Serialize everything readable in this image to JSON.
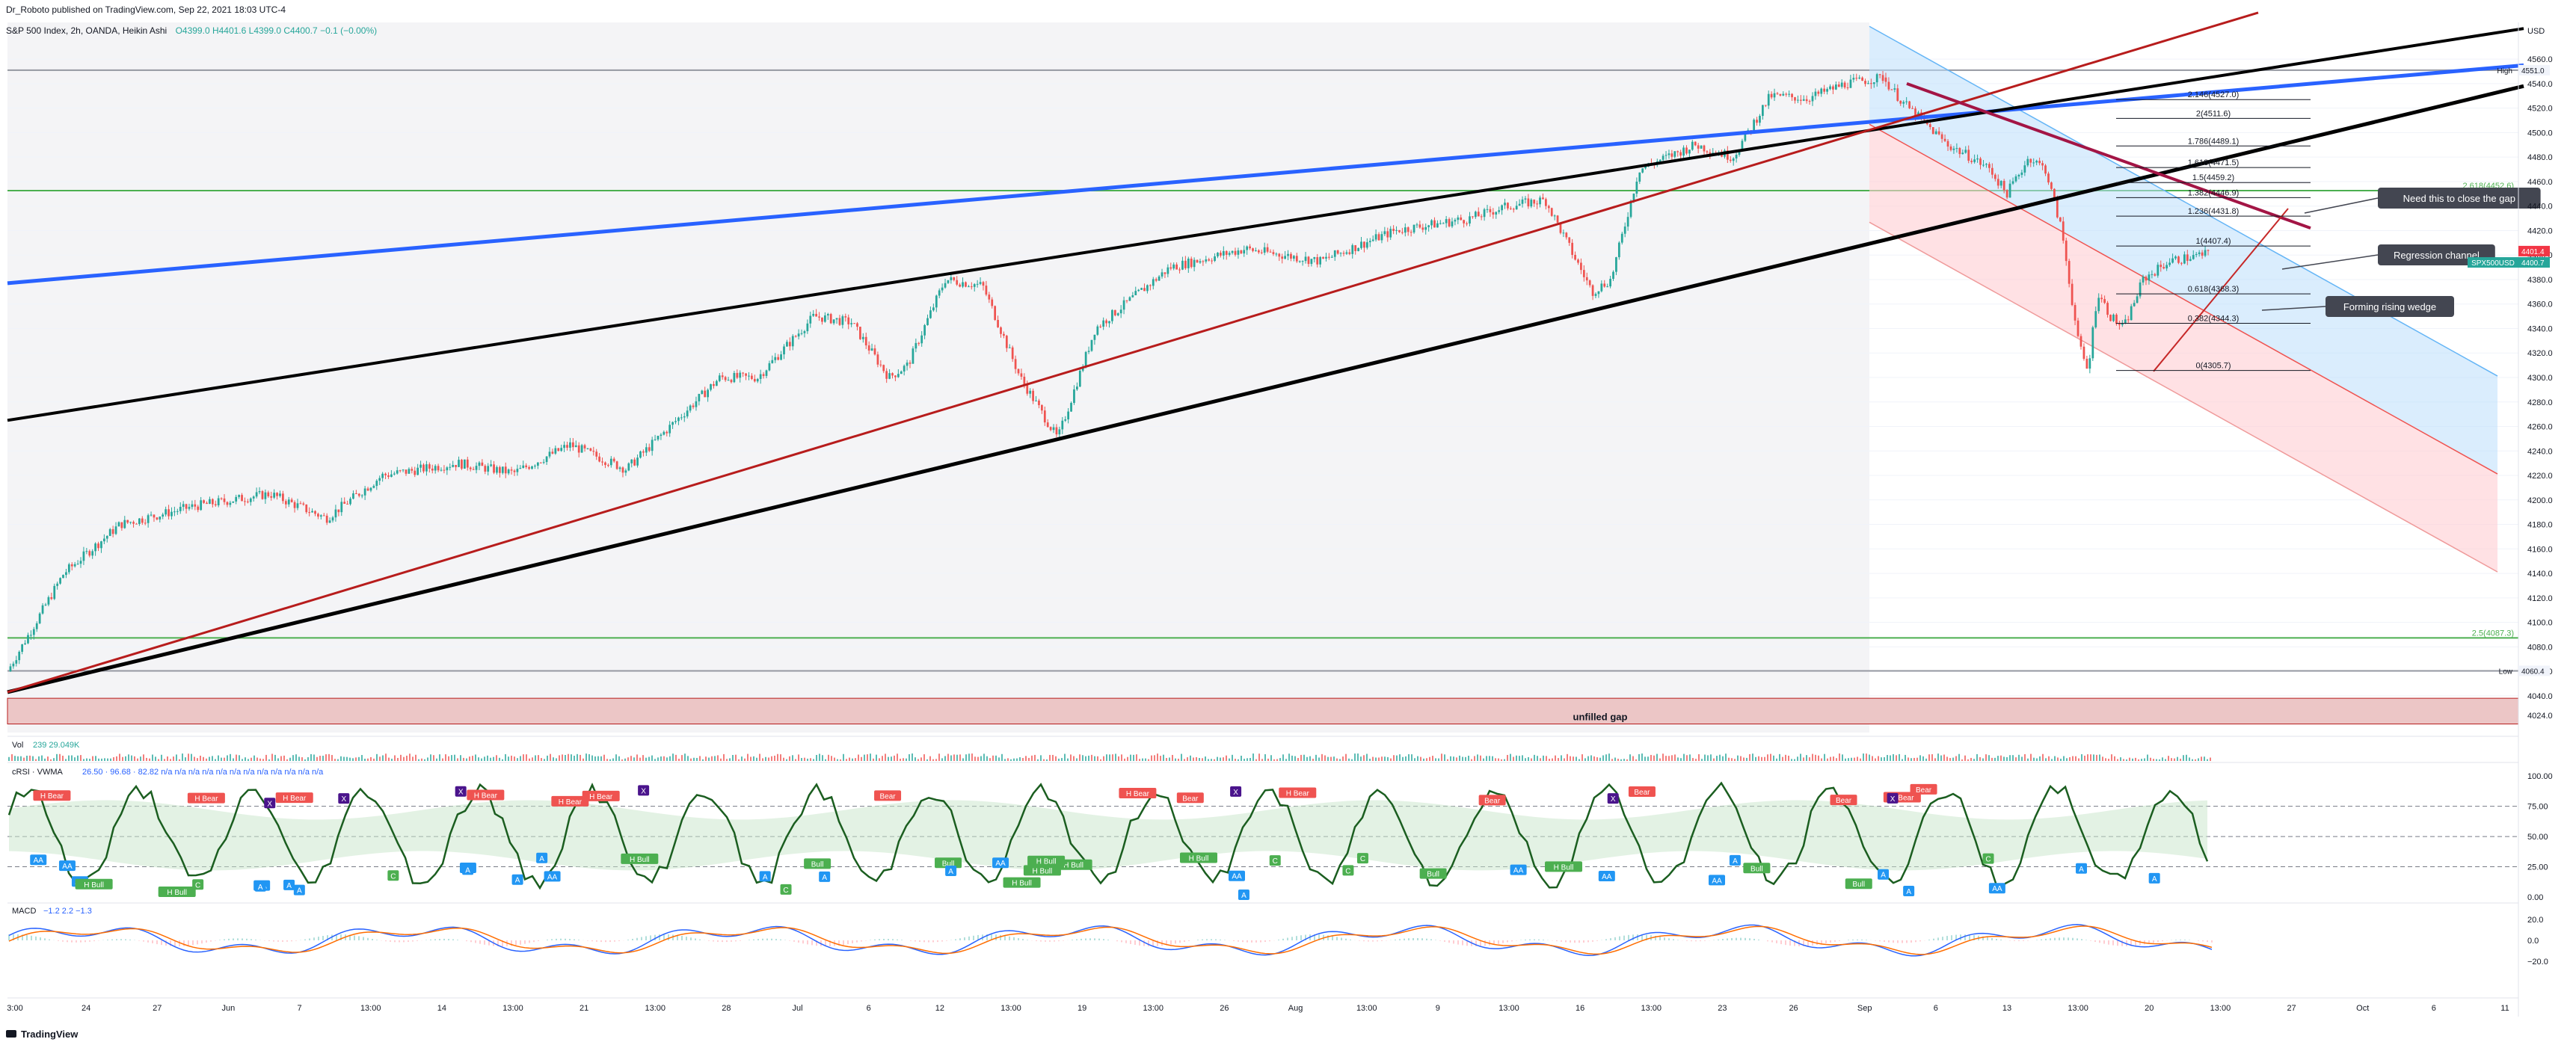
{
  "header": {
    "publisher": "Dr_Roboto published on TradingView.com, Sep 22, 2021 18:03 UTC-4",
    "symbol": "S&P 500 Index, 2h, OANDA, Heikin Ashi",
    "ohlc": "O4399.0 H4401.6 L4399.0 C4400.7 −0.1 (−0.00%)"
  },
  "footer": {
    "logo": "TradingView"
  },
  "chart_data": {
    "type": "candlestick",
    "title": "S&P 500 Index, 2h, OANDA, Heikin Ashi",
    "ylim": [
      4010,
      4590
    ],
    "y_ticks": [
      4560.0,
      4540.0,
      4520.0,
      4500.0,
      4480.0,
      4460.0,
      4440.0,
      4420.0,
      4400.0,
      4380.0,
      4360.0,
      4340.0,
      4320.0,
      4300.0,
      4280.0,
      4260.0,
      4240.0,
      4220.0,
      4200.0,
      4180.0,
      4160.0,
      4140.0,
      4120.0,
      4100.0,
      4080.0,
      4060.0,
      4040.0,
      4024.0
    ],
    "x_tick_labels": [
      "3:00",
      "24",
      "27",
      "Jun",
      "7",
      "13:00",
      "14",
      "13:00",
      "21",
      "13:00",
      "28",
      "Jul",
      "6",
      "12",
      "13:00",
      "19",
      "13:00",
      "26",
      "Aug",
      "13:00",
      "9",
      "13:00",
      "16",
      "13:00",
      "23",
      "26",
      "Sep",
      "6",
      "13",
      "13:00",
      "20",
      "13:00",
      "27",
      "Oct",
      "6",
      "11"
    ],
    "price_path": [
      {
        "t": 0.0,
        "v": 4060
      },
      {
        "t": 0.03,
        "v": 4140
      },
      {
        "t": 0.06,
        "v": 4180
      },
      {
        "t": 0.1,
        "v": 4195
      },
      {
        "t": 0.14,
        "v": 4205
      },
      {
        "t": 0.17,
        "v": 4185
      },
      {
        "t": 0.2,
        "v": 4220
      },
      {
        "t": 0.24,
        "v": 4230
      },
      {
        "t": 0.27,
        "v": 4222
      },
      {
        "t": 0.3,
        "v": 4245
      },
      {
        "t": 0.33,
        "v": 4225
      },
      {
        "t": 0.38,
        "v": 4300
      },
      {
        "t": 0.4,
        "v": 4300
      },
      {
        "t": 0.43,
        "v": 4350
      },
      {
        "t": 0.45,
        "v": 4345
      },
      {
        "t": 0.47,
        "v": 4300
      },
      {
        "t": 0.48,
        "v": 4310
      },
      {
        "t": 0.5,
        "v": 4380
      },
      {
        "t": 0.52,
        "v": 4375
      },
      {
        "t": 0.54,
        "v": 4300
      },
      {
        "t": 0.56,
        "v": 4250
      },
      {
        "t": 0.58,
        "v": 4340
      },
      {
        "t": 0.62,
        "v": 4390
      },
      {
        "t": 0.66,
        "v": 4405
      },
      {
        "t": 0.7,
        "v": 4395
      },
      {
        "t": 0.74,
        "v": 4420
      },
      {
        "t": 0.78,
        "v": 4430
      },
      {
        "t": 0.8,
        "v": 4440
      },
      {
        "t": 0.82,
        "v": 4445
      },
      {
        "t": 0.845,
        "v": 4370
      },
      {
        "t": 0.855,
        "v": 4380
      },
      {
        "t": 0.87,
        "v": 4470
      },
      {
        "t": 0.9,
        "v": 4490
      },
      {
        "t": 0.92,
        "v": 4480
      },
      {
        "t": 0.94,
        "v": 4530
      },
      {
        "t": 0.96,
        "v": 4528
      },
      {
        "t": 0.98,
        "v": 4540
      },
      {
        "t": 1.0,
        "v": 4545
      }
    ],
    "price_path_2": [
      {
        "t": 0.0,
        "v": 4545
      },
      {
        "t": 0.06,
        "v": 4525
      },
      {
        "t": 0.12,
        "v": 4510
      },
      {
        "t": 0.2,
        "v": 4490
      },
      {
        "t": 0.27,
        "v": 4480
      },
      {
        "t": 0.33,
        "v": 4470
      },
      {
        "t": 0.38,
        "v": 4450
      },
      {
        "t": 0.45,
        "v": 4480
      },
      {
        "t": 0.5,
        "v": 4470
      },
      {
        "t": 0.55,
        "v": 4420
      },
      {
        "t": 0.6,
        "v": 4330
      },
      {
        "t": 0.63,
        "v": 4305
      },
      {
        "t": 0.66,
        "v": 4370
      },
      {
        "t": 0.7,
        "v": 4350
      },
      {
        "t": 0.74,
        "v": 4340
      },
      {
        "t": 0.8,
        "v": 4380
      },
      {
        "t": 0.88,
        "v": 4395
      },
      {
        "t": 1.0,
        "v": 4401
      }
    ],
    "price_badges": [
      {
        "label": "High",
        "value": "4551.0"
      },
      {
        "label": "4401.4",
        "color": "#f23645"
      },
      {
        "label": "SPX500USD",
        "value": "4400.7",
        "color": "#26a69a"
      },
      {
        "label": "Low",
        "value": "4060.4"
      }
    ],
    "horizontal_levels": [
      {
        "value": 4551.0,
        "color": "#9598a1",
        "label": ""
      },
      {
        "value": 4452.6,
        "color": "#4caf50",
        "label": "2.618(4452.6)"
      },
      {
        "value": 4087.3,
        "color": "#4caf50",
        "label": "2.5(4087.3)"
      },
      {
        "value": 4060.4,
        "color": "#9598a1",
        "label": ""
      }
    ],
    "fib_levels": [
      {
        "label": "2.146(4527.0)",
        "value": 4527.0
      },
      {
        "label": "2(4511.6)",
        "value": 4511.6
      },
      {
        "label": "1.786(4489.1)",
        "value": 4489.1
      },
      {
        "label": "1.618(4471.5)",
        "value": 4471.5
      },
      {
        "label": "1.5(4459.2)",
        "value": 4459.2
      },
      {
        "label": "1.382(4446.9)",
        "value": 4446.9
      },
      {
        "label": "1.236(4431.8)",
        "value": 4431.8
      },
      {
        "label": "1(4407.4)",
        "value": 4407.4
      },
      {
        "label": "0.618(4368.3)",
        "value": 4368.3
      },
      {
        "label": "0.382(4344.3)",
        "value": 4344.3
      },
      {
        "label": "0(4305.7)",
        "value": 4305.7
      }
    ],
    "gap_zone": {
      "label": "unfilled gap",
      "from": 4017,
      "to": 4038
    },
    "annotations": [
      "Need this to close the gap",
      "Regression channel",
      "Forming rising wedge"
    ],
    "volume": {
      "label": "Vol",
      "values": "239  29.049K"
    },
    "crsi": {
      "label": "cRSI · VWMA",
      "values": "26.50 · 96.68 · 82.82 n/a n/a n/a n/a n/a n/a n/a n/a n/a n/a n/a n/a",
      "ticks": [
        "100.00",
        "75.00",
        "50.00",
        "25.00",
        "0.00"
      ],
      "signal_labels": [
        "Bear",
        "H Bear",
        "Bull",
        "H Bull",
        "A",
        "AA",
        "C",
        "X"
      ]
    },
    "macd": {
      "label": "MACD",
      "values": "−1.2  2.2  −1.3",
      "ticks": [
        "20.0",
        "0.0",
        "−20.0"
      ]
    }
  },
  "colors": {
    "up": "#26a69a",
    "down": "#ef5350",
    "blue_trend": "#2962ff",
    "black_trend": "#000000",
    "red_trend": "#b71c1c",
    "channel_upper": "#bbdefb",
    "channel_lower": "#ffcdd2",
    "label_bg": "#434651"
  }
}
